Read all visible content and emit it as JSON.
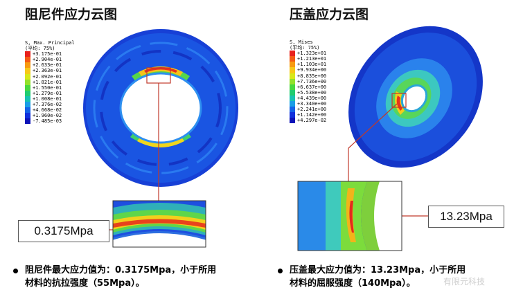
{
  "left": {
    "title": "阻尼件应力云图",
    "legend": {
      "header1": "S, Max. Principal",
      "header2": "(平均: 75%)",
      "values": [
        "+3.175e-01",
        "+2.904e-01",
        "+2.633e-01",
        "+2.363e-01",
        "+2.092e-01",
        "+1.821e-01",
        "+1.550e-01",
        "+1.279e-01",
        "+1.008e-01",
        "+7.376e-02",
        "+4.668e-02",
        "+1.960e-02",
        "-7.485e-03"
      ]
    },
    "callout": "0.3175Mpa",
    "bullet_line1": "阻尼件最大应力值为：0.3175Mpa，小于所用",
    "bullet_line2": "材料的抗拉强度（55Mpa）。"
  },
  "right": {
    "title": "压盖应力云图",
    "legend": {
      "header1": "S, Mises",
      "header2": "(平均: 75%)",
      "values": [
        "+1.323e+01",
        "+1.213e+01",
        "+1.103e+01",
        "+9.934e+00",
        "+8.835e+00",
        "+7.736e+00",
        "+6.637e+00",
        "+5.538e+00",
        "+4.439e+00",
        "+3.340e+00",
        "+2.241e+00",
        "+1.142e+00",
        "+4.297e-02"
      ]
    },
    "callout": "13.23Mpa",
    "bullet_line1": "压盖最大应力值为：13.23Mpa，小于所用",
    "bullet_line2": "材料的屈服强度（140Mpa）。"
  },
  "legend_colors": [
    "#e8211c",
    "#f45a14",
    "#f79a10",
    "#f7c818",
    "#d8e81a",
    "#93e12a",
    "#48d83e",
    "#20cc70",
    "#17c2b2",
    "#1a9ee6",
    "#1462e8",
    "#1130dc",
    "#0d13b8"
  ],
  "watermark": "有限元科技"
}
